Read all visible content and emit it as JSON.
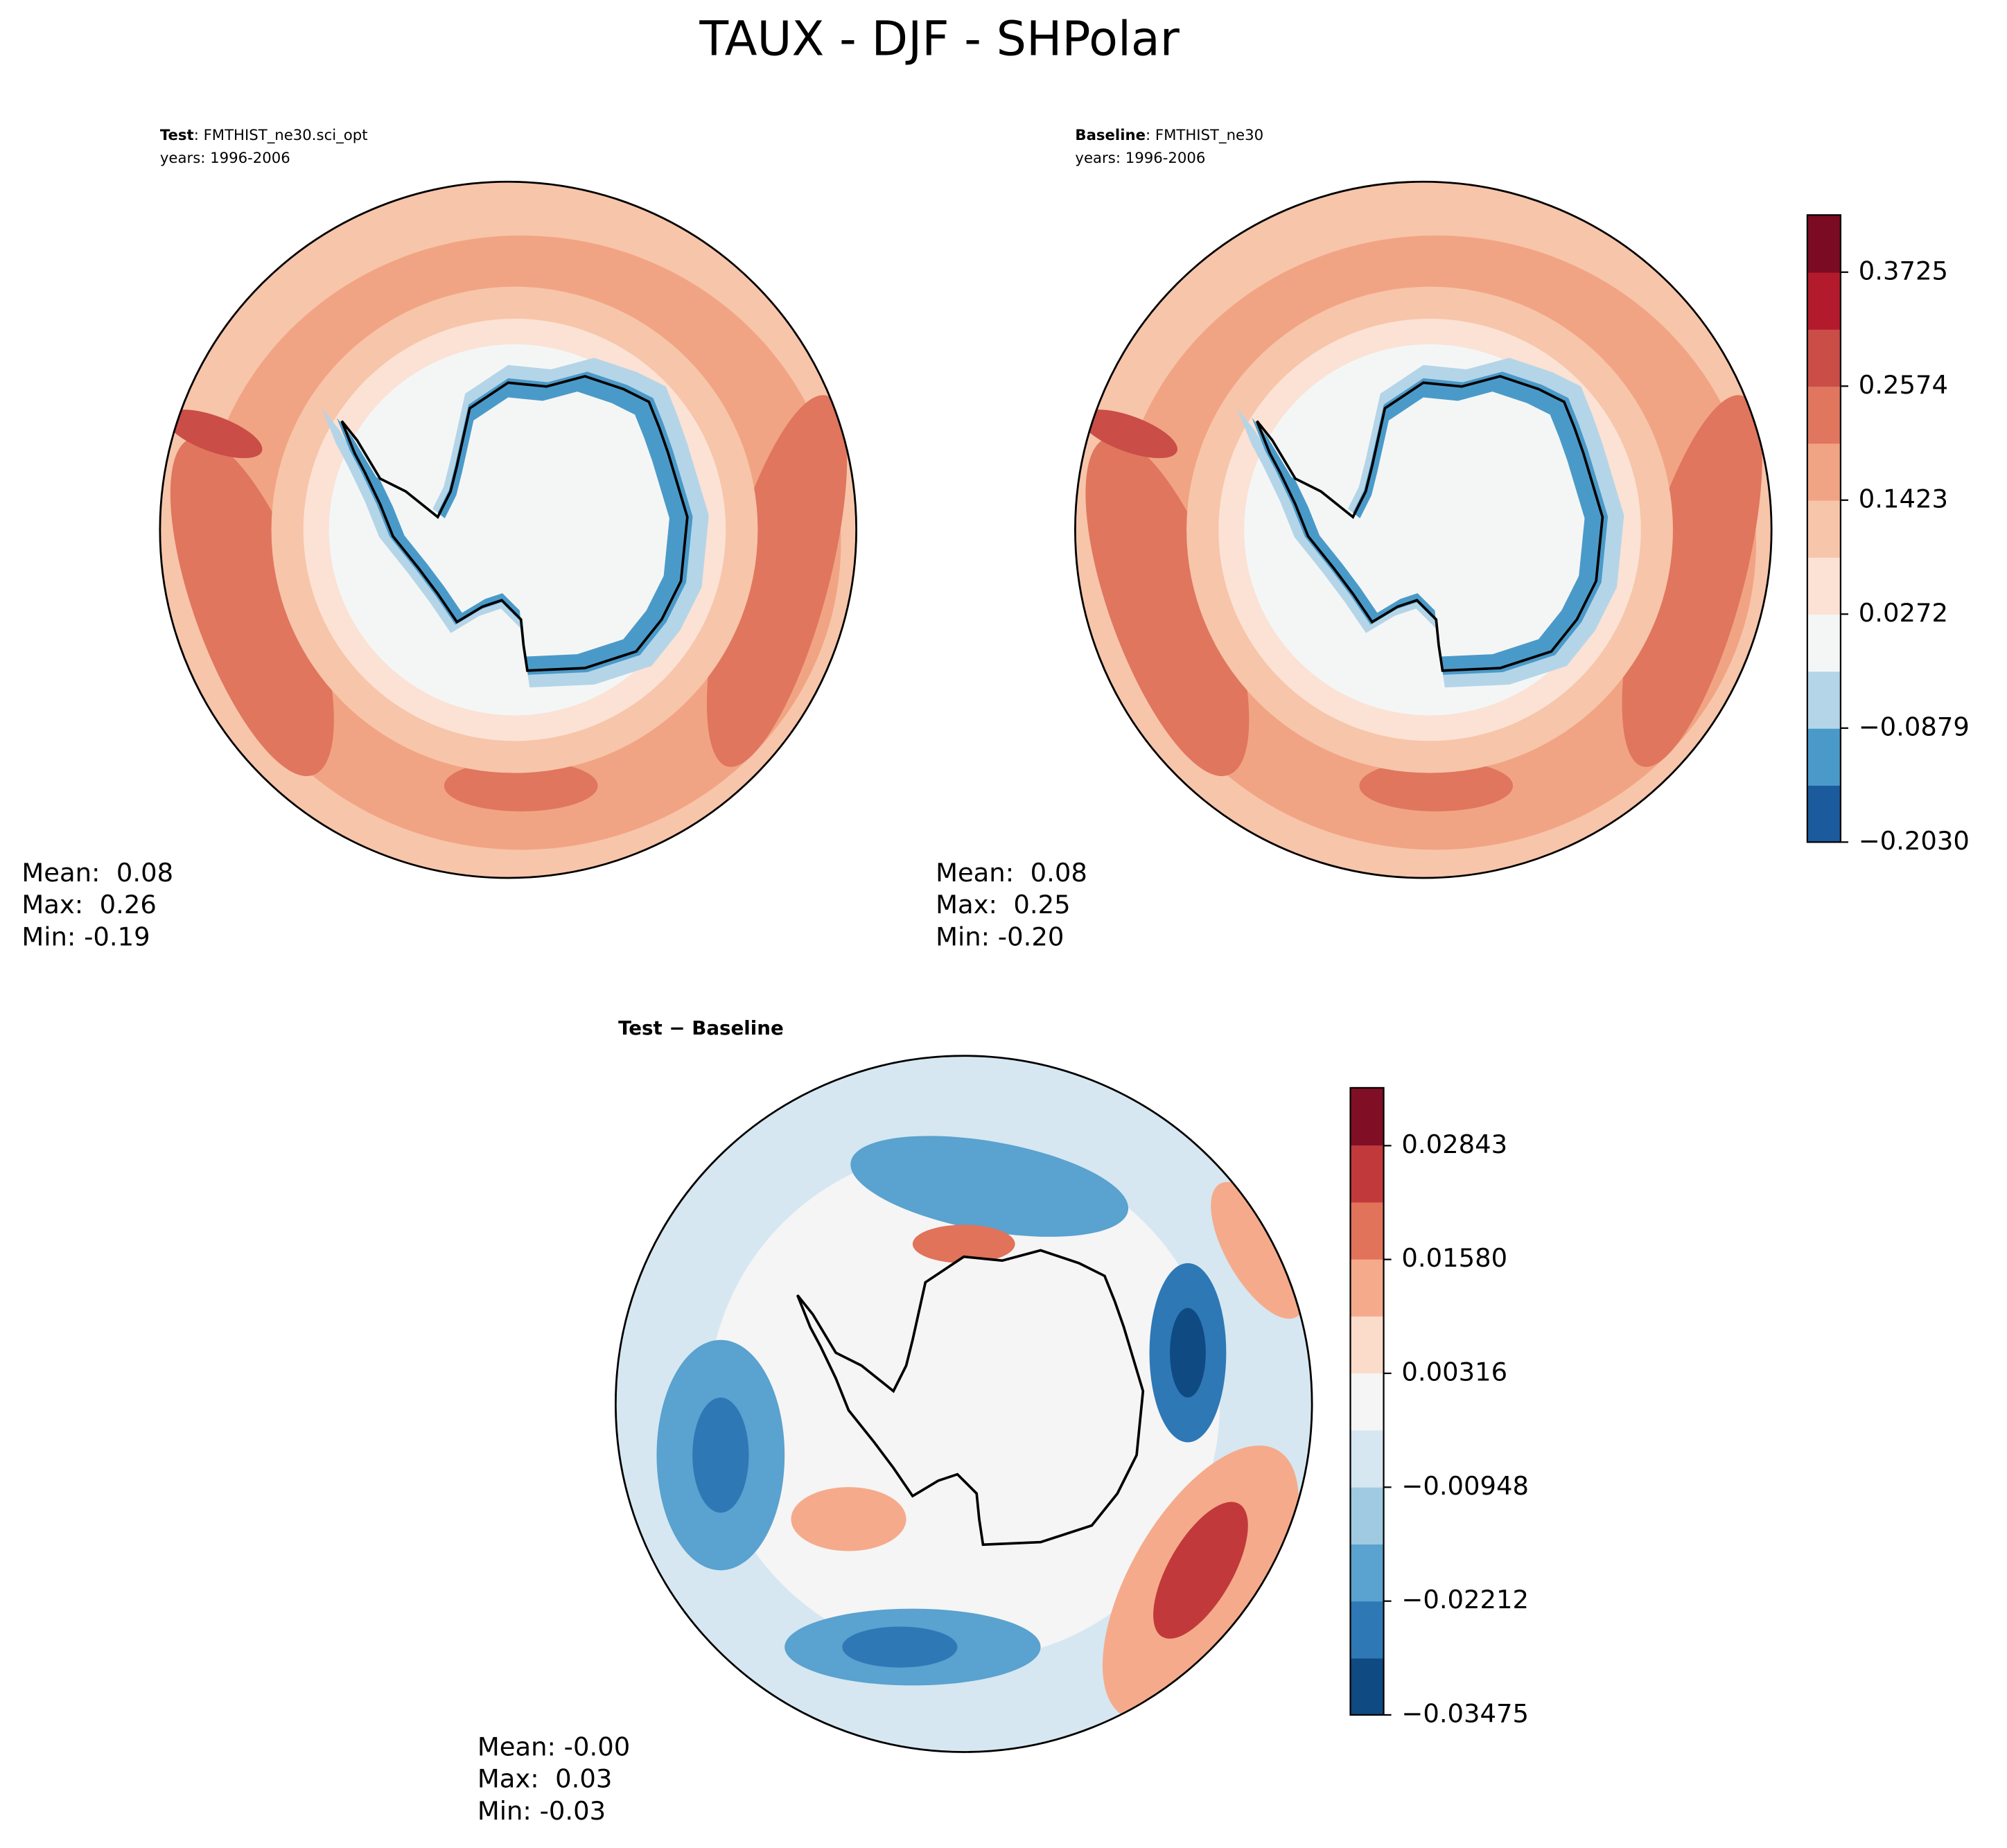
{
  "title": "TAUX - DJF - SHPolar",
  "panels": [
    {
      "name_bold": "Test",
      "name": ": FMTHIST_ne30.sci_opt",
      "years": "years: 1996-2006",
      "stats": [
        "Mean:  0.08",
        "Max:  0.26",
        "Min: -0.19"
      ]
    },
    {
      "name_bold": "Baseline",
      "name": ": FMTHIST_ne30",
      "years": "years: 1996-2006",
      "stats": [
        "Mean:  0.08",
        "Max:  0.25",
        "Min: -0.20"
      ]
    },
    {
      "name_bold": "Test − Baseline",
      "stats": [
        "Mean: -0.00",
        "Max:  0.03",
        "Min: -0.03"
      ]
    }
  ],
  "colorbars": [
    {
      "lim": [
        -0.203,
        0.4302
      ],
      "ticks": [
        {
          "value": -0.203,
          "label": "−0.2030"
        },
        {
          "value": -0.0879,
          "label": "−0.0879"
        },
        0.0272,
        0.1423,
        0.2574,
        0.3725
      ],
      "colors": [
        "#1b5a9c",
        "#4a9ac9",
        "#b4d5e8",
        "#f4f6f6",
        "#fbe2d4",
        "#f7c5aa",
        "#f1a483",
        "#e0765e",
        "#ca4d48",
        "#b31b2c",
        "#7b0b22"
      ]
    },
    {
      "lim": [
        -0.03475,
        0.03485
      ],
      "ticks": [
        {
          "value": -0.03475,
          "label": "−0.03475"
        },
        {
          "value": -0.02212,
          "label": "−0.02212"
        },
        {
          "value": -0.00948,
          "label": "−0.00948"
        },
        0.00316,
        {
          "value": 0.0158,
          "label": "0.01580"
        },
        0.02843
      ],
      "colors": [
        "#0f4a82",
        "#2e78b6",
        "#5aa2cf",
        "#9fcae2",
        "#d6e7f1",
        "#f5f5f5",
        "#fbdccb",
        "#f5ab8b",
        "#e0735a",
        "#c2393b",
        "#800f26"
      ]
    }
  ]
}
